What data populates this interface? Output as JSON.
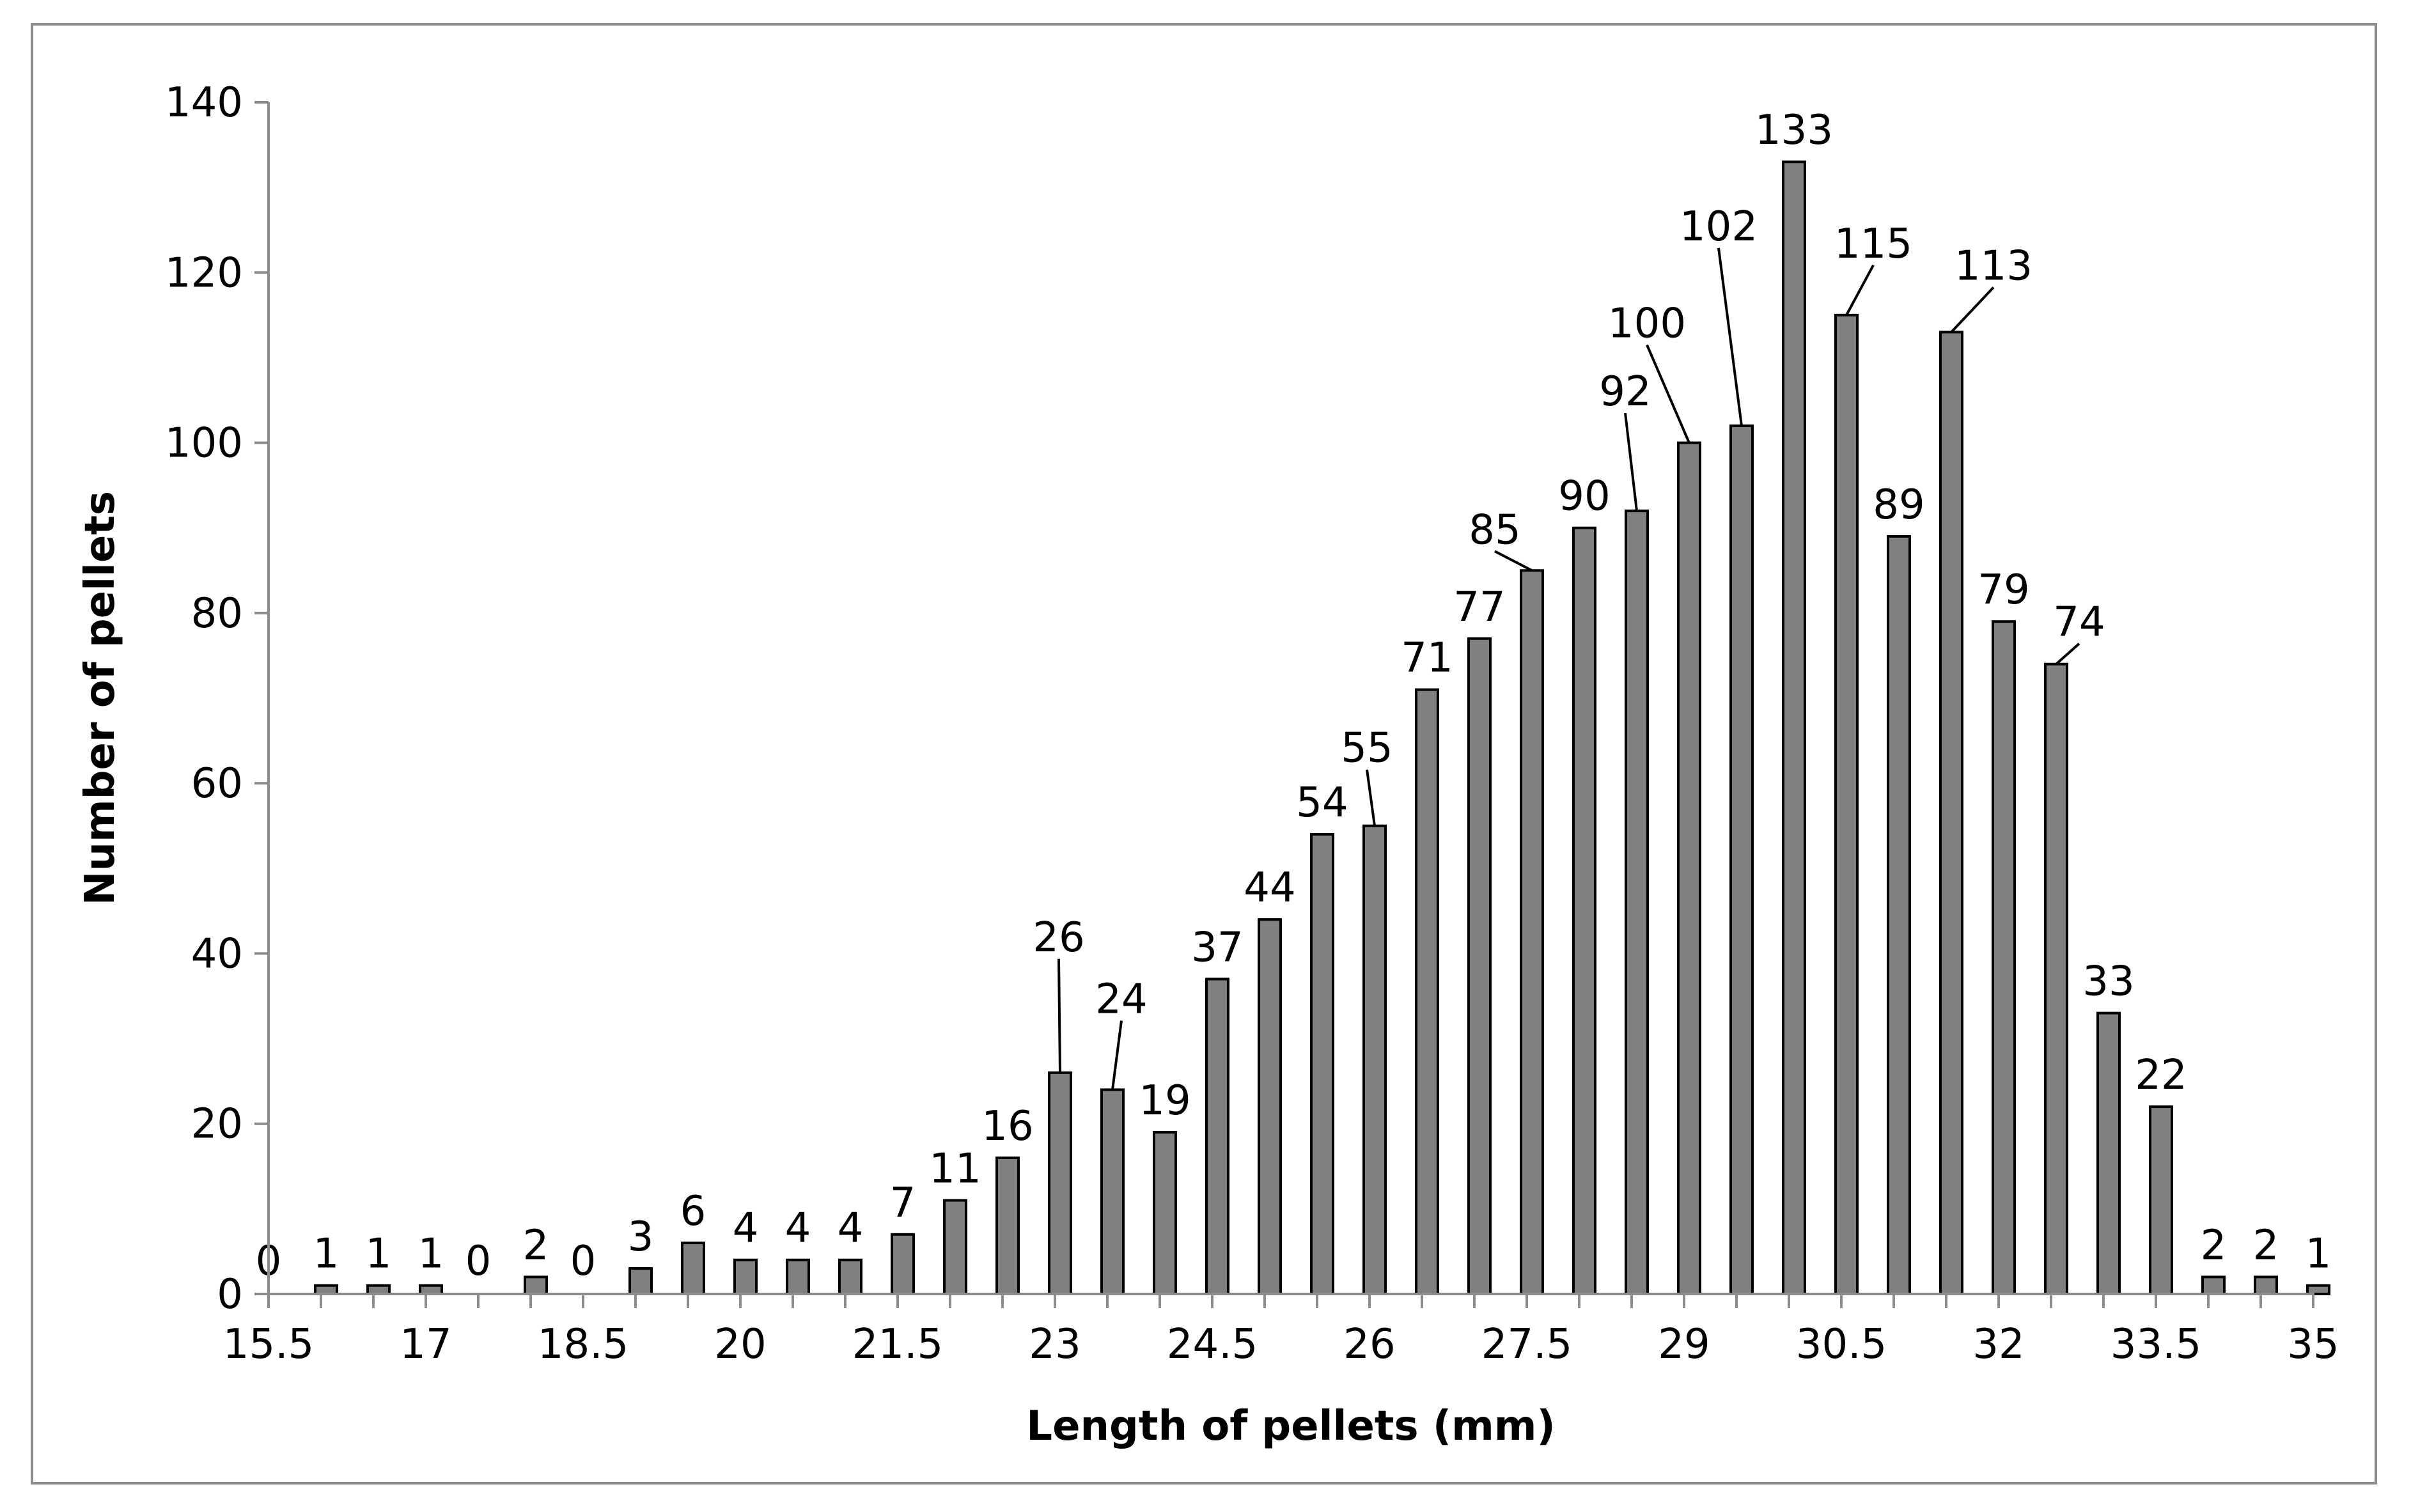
{
  "chart_data": {
    "type": "bar",
    "title": "",
    "xlabel": "Length of pellets (mm)",
    "ylabel": "Number of pellets",
    "ylim": [
      0,
      140
    ],
    "yticks": [
      0,
      20,
      40,
      60,
      80,
      100,
      120,
      140
    ],
    "x": [
      15.5,
      16,
      16.5,
      17,
      17.5,
      18,
      18.5,
      19,
      19.5,
      20,
      20.5,
      21,
      21.5,
      22,
      22.5,
      23,
      23.5,
      24,
      24.5,
      25,
      25.5,
      26,
      26.5,
      27,
      27.5,
      28,
      28.5,
      29,
      29.5,
      30,
      30.5,
      31,
      31.5,
      32,
      32.5,
      33,
      33.5,
      34,
      34.5,
      35
    ],
    "xtick_labels": [
      "15.5",
      "17",
      "18.5",
      "20",
      "21.5",
      "23",
      "24.5",
      "26",
      "27.5",
      "29",
      "30.5",
      "32",
      "33.5",
      "35"
    ],
    "values": [
      0,
      1,
      1,
      1,
      0,
      2,
      0,
      3,
      6,
      4,
      4,
      4,
      7,
      11,
      16,
      26,
      24,
      19,
      37,
      44,
      54,
      55,
      71,
      77,
      85,
      90,
      92,
      100,
      102,
      133,
      115,
      89,
      113,
      79,
      74,
      33,
      22,
      2,
      2,
      1
    ],
    "bar_color": "#808080",
    "bar_edge_color": "#000000",
    "grid": false,
    "legend": "none"
  }
}
